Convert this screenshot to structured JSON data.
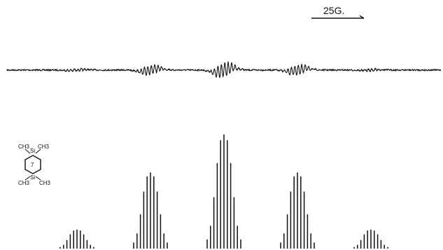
{
  "chart_data": {
    "type": "line",
    "title": "",
    "xlabel": "",
    "ylabel": "",
    "scale_bar": {
      "label": "25G.",
      "length_gauss": 25
    },
    "groups": 5,
    "group_center_gauss": [
      -70,
      -35,
      0,
      35,
      70
    ],
    "group_relative_intensity": [
      1,
      4,
      6,
      4,
      1
    ],
    "sub_line_spacing_gauss": 1.6,
    "sub_line_intensity_pattern": [
      0.08,
      0.2,
      0.45,
      0.75,
      0.95,
      1.0,
      0.95,
      0.75,
      0.45,
      0.2,
      0.08
    ],
    "series": [
      {
        "type": "derivative-spectrum"
      },
      {
        "type": "stick-spectrum"
      }
    ],
    "molecule_labels": {
      "top_left": "CH3",
      "top_right": "CH3",
      "bottom_left": "CH3",
      "bottom_right": "CH3",
      "ring_atom_top": "Si",
      "ring_atom_bottom": "Si",
      "center": "7"
    }
  }
}
